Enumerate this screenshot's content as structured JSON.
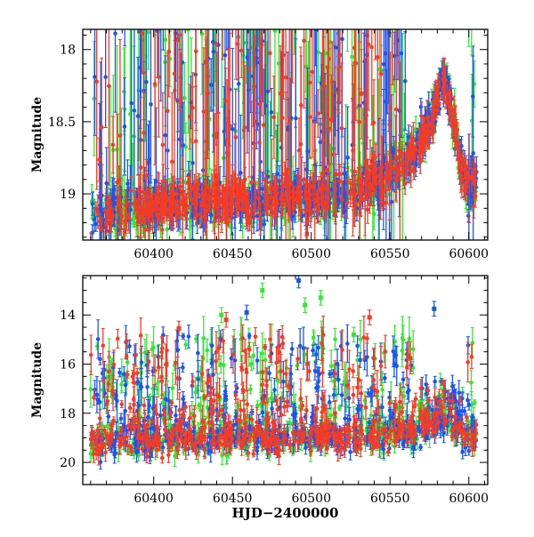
{
  "chart_data": [
    {
      "type": "scatter",
      "title": "",
      "xlabel": "",
      "ylabel": "Magnitude",
      "xlim": [
        60355,
        60612
      ],
      "ylim": [
        19.32,
        17.86
      ],
      "y_inverted": true,
      "error_bars": true,
      "x_ticks": [
        60400,
        60450,
        60500,
        60550,
        60600
      ],
      "x_tick_labels": [
        "60400",
        "60450",
        "60500",
        "60550",
        "60600"
      ],
      "y_ticks": [
        18,
        18.5,
        19
      ],
      "y_tick_labels": [
        "18",
        "18.5",
        "19"
      ],
      "series": [
        {
          "color": "#33e633",
          "draw_order": 0
        },
        {
          "color": "#1a55f0",
          "draw_order": 1
        },
        {
          "color": "#f23c28",
          "draw_order": 2
        }
      ],
      "baseline": {
        "points": [
          [
            60360,
            19.15
          ],
          [
            60380,
            19.12
          ],
          [
            60400,
            19.08
          ],
          [
            60420,
            19.06
          ],
          [
            60440,
            19.05
          ],
          [
            60460,
            19.04
          ],
          [
            60480,
            19.03
          ],
          [
            60500,
            19.02
          ],
          [
            60520,
            19.0
          ],
          [
            60540,
            18.93
          ],
          [
            60560,
            18.78
          ],
          [
            60575,
            18.55
          ],
          [
            60583,
            18.2
          ],
          [
            60588,
            18.35
          ],
          [
            60592,
            18.6
          ],
          [
            60596,
            18.85
          ],
          [
            60600,
            18.95
          ],
          [
            60605,
            18.9
          ]
        ],
        "scatter": 0.07
      }
    },
    {
      "type": "scatter",
      "title": "",
      "xlabel": "HJD−2400000",
      "ylabel": "Magnitude",
      "xlim": [
        60355,
        60612
      ],
      "ylim": [
        20.9,
        12.4
      ],
      "y_inverted": true,
      "error_bars": true,
      "x_ticks": [
        60400,
        60450,
        60500,
        60550,
        60600
      ],
      "x_tick_labels": [
        "60400",
        "60450",
        "60500",
        "60550",
        "60600"
      ],
      "y_ticks": [
        14,
        16,
        18,
        20
      ],
      "y_tick_labels": [
        "14",
        "16",
        "18",
        "20"
      ],
      "series": [
        {
          "color": "#33e633",
          "draw_order": 0
        },
        {
          "color": "#1a55f0",
          "draw_order": 1
        },
        {
          "color": "#f23c28",
          "draw_order": 2
        }
      ],
      "baseline": {
        "points": [
          [
            60360,
            19.15
          ],
          [
            60400,
            19.08
          ],
          [
            60450,
            19.04
          ],
          [
            60500,
            19.02
          ],
          [
            60540,
            18.93
          ],
          [
            60560,
            18.78
          ],
          [
            60575,
            18.55
          ],
          [
            60583,
            18.2
          ],
          [
            60590,
            18.5
          ],
          [
            60596,
            18.85
          ],
          [
            60605,
            18.9
          ]
        ],
        "scatter": 0.3
      },
      "outliers": [
        {
          "x": 60492,
          "y": 12.6,
          "color": "#1a55f0"
        },
        {
          "x": 60578,
          "y": 13.75,
          "color": "#1a55f0"
        },
        {
          "x": 60459,
          "y": 13.9,
          "color": "#1a55f0"
        },
        {
          "x": 60446,
          "y": 14.2,
          "color": "#f23c28"
        },
        {
          "x": 60537,
          "y": 14.1,
          "color": "#f23c28"
        },
        {
          "x": 60416,
          "y": 14.55,
          "color": "#f23c28"
        },
        {
          "x": 60469,
          "y": 13.0,
          "color": "#33e633"
        },
        {
          "x": 60506,
          "y": 13.3,
          "color": "#33e633"
        },
        {
          "x": 60496,
          "y": 13.6,
          "color": "#33e633"
        },
        {
          "x": 60443,
          "y": 14.0,
          "color": "#33e633"
        },
        {
          "x": 60527,
          "y": 14.8,
          "color": "#33e633"
        }
      ]
    }
  ]
}
